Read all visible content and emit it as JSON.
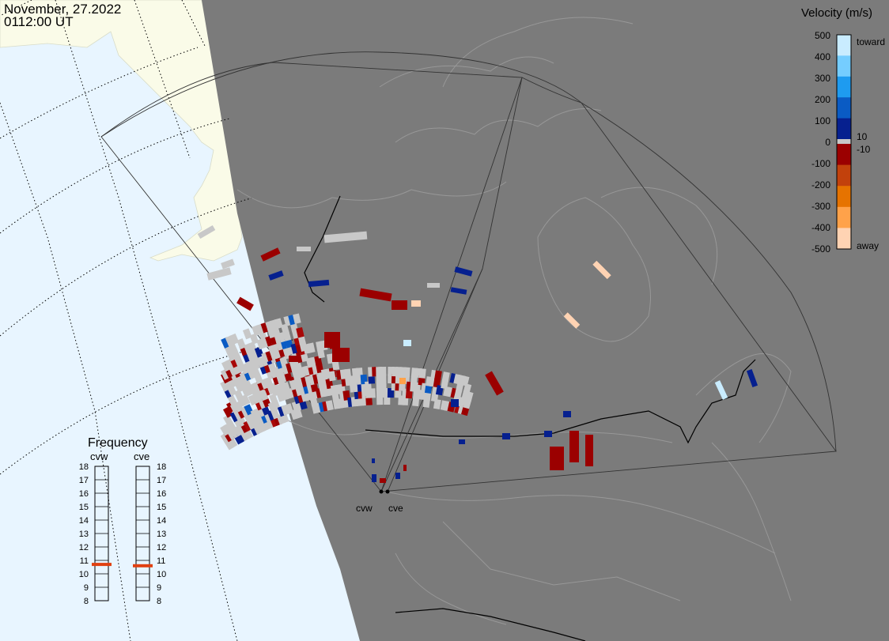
{
  "header": {
    "date": "November, 27.2022",
    "time": "0112:00 UT"
  },
  "legend": {
    "title": "Velocity (m/s)",
    "ticks": [
      "500",
      "400",
      "300",
      "200",
      "100",
      "0",
      "-100",
      "-200",
      "-300",
      "-400",
      "-500"
    ],
    "toward_label": "toward",
    "away_label": "away",
    "pos_threshold": "10",
    "neg_threshold": "-10"
  },
  "frequency": {
    "title": "Frequency",
    "radars": [
      {
        "name": "cvw",
        "value": 10.7
      },
      {
        "name": "cve",
        "value": 10.6
      }
    ],
    "scale": [
      "18",
      "17",
      "16",
      "15",
      "14",
      "13",
      "12",
      "11",
      "10",
      "9",
      "8"
    ]
  },
  "stations": [
    {
      "label": "cvw"
    },
    {
      "label": "cve"
    }
  ],
  "colors": {
    "ocean": "#e8f5ff",
    "daylight_land": "#fafbe8",
    "night": "#7b7b7b",
    "ground_scatter": "#c8c8c8",
    "toward_scale": [
      "#c9ecff",
      "#75cdff",
      "#1e9bf0",
      "#0a5bc4",
      "#06208f"
    ],
    "away_scale": [
      "#9b0000",
      "#c2410c",
      "#e67300",
      "#ffa24a",
      "#ffd3b3"
    ],
    "frequency_marker": "#e04010"
  }
}
